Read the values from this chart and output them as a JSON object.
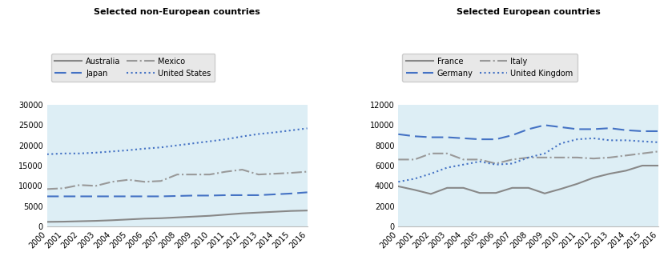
{
  "years": [
    2000,
    2001,
    2002,
    2003,
    2004,
    2005,
    2006,
    2007,
    2008,
    2009,
    2010,
    2011,
    2012,
    2013,
    2014,
    2015,
    2016
  ],
  "non_european": {
    "title": "Selected non-European countries",
    "Australia": [
      1100,
      1150,
      1250,
      1350,
      1500,
      1700,
      1900,
      2000,
      2200,
      2400,
      2600,
      2900,
      3200,
      3400,
      3600,
      3800,
      3900
    ],
    "Japan": [
      7400,
      7400,
      7400,
      7400,
      7400,
      7400,
      7400,
      7400,
      7500,
      7600,
      7600,
      7700,
      7700,
      7700,
      7900,
      8100,
      8400
    ],
    "Mexico": [
      9200,
      9400,
      10200,
      10000,
      11000,
      11500,
      11000,
      11200,
      12800,
      12800,
      12800,
      13500,
      14000,
      12800,
      13000,
      13200,
      13500
    ],
    "United States": [
      17800,
      18000,
      18000,
      18200,
      18500,
      18800,
      19200,
      19500,
      20000,
      20500,
      21000,
      21500,
      22200,
      22800,
      23200,
      23700,
      24200
    ]
  },
  "european": {
    "title": "Selected European countries",
    "France": [
      3950,
      3600,
      3200,
      3800,
      3800,
      3300,
      3300,
      3800,
      3800,
      3250,
      3700,
      4200,
      4800,
      5200,
      5500,
      6000,
      6000
    ],
    "Germany": [
      9100,
      8900,
      8800,
      8800,
      8700,
      8600,
      8600,
      9000,
      9600,
      10000,
      9800,
      9600,
      9600,
      9700,
      9500,
      9400,
      9400
    ],
    "Italy": [
      6600,
      6600,
      7200,
      7200,
      6600,
      6600,
      6200,
      6600,
      6800,
      6800,
      6800,
      6800,
      6700,
      6800,
      7000,
      7200,
      7400
    ],
    "United Kingdom": [
      4400,
      4700,
      5200,
      5800,
      6100,
      6400,
      6100,
      6200,
      6800,
      7200,
      8200,
      8600,
      8700,
      8500,
      8500,
      8400,
      8300
    ]
  },
  "background_color": "#ddeef5",
  "grey_solid": "#888888",
  "grey_dashdot": "#999999",
  "blue_dashed": "#4472c4",
  "blue_dotted": "#4472c4",
  "legend_bg": "#e8e8e8",
  "legend_edge": "#cccccc",
  "left_ylim": [
    0,
    30000
  ],
  "right_ylim": [
    0,
    12000
  ],
  "left_yticks": [
    0,
    5000,
    10000,
    15000,
    20000,
    25000,
    30000
  ],
  "right_yticks": [
    0,
    2000,
    4000,
    6000,
    8000,
    10000,
    12000
  ]
}
